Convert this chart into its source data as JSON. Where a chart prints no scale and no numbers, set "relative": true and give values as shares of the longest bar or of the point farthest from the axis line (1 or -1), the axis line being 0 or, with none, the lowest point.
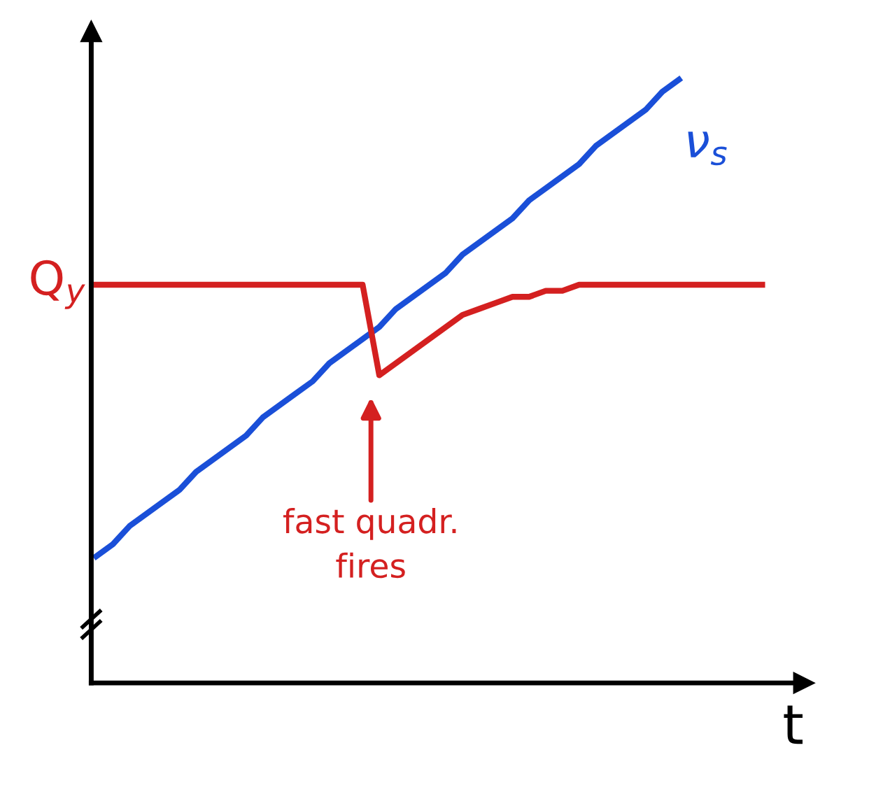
{
  "chart_data": {
    "type": "line",
    "relative": true,
    "xlabel": "t",
    "marker": "none",
    "line_style": "solid",
    "categories": [
      null,
      null,
      null,
      null,
      null,
      null,
      null,
      null,
      null,
      null,
      null,
      null,
      null,
      null,
      null,
      null,
      null,
      null,
      null,
      null,
      null,
      null,
      null,
      null,
      null,
      null,
      null,
      null,
      null,
      null,
      null,
      null,
      null,
      null,
      null,
      null,
      null,
      null,
      null,
      null,
      null
    ],
    "series": [
      {
        "name": "ν$_{s}$",
        "color": "#1a4fd8",
        "values": [
          0.21,
          0.23,
          0.26,
          0.28,
          0.3,
          0.32,
          0.35,
          0.37,
          0.39,
          0.41,
          0.44,
          0.46,
          0.48,
          0.5,
          0.53,
          0.55,
          0.57,
          0.59,
          0.62,
          0.64,
          0.66,
          0.68,
          0.71,
          0.73,
          0.75,
          0.77,
          0.8,
          0.82,
          0.84,
          0.86,
          0.89,
          0.91,
          0.93,
          0.95,
          0.98,
          1.0,
          null,
          null,
          null,
          null,
          null
        ]
      },
      {
        "name": "Q$_{y}$",
        "color": "#d42020",
        "values": [
          0.66,
          0.66,
          0.66,
          0.66,
          0.66,
          0.66,
          0.66,
          0.66,
          0.66,
          0.66,
          0.66,
          0.66,
          0.66,
          0.66,
          0.66,
          0.66,
          0.66,
          0.51,
          0.53,
          0.55,
          0.57,
          0.59,
          0.61,
          0.62,
          0.63,
          0.64,
          0.64,
          0.65,
          0.65,
          0.66,
          0.66,
          0.66,
          0.66,
          0.66,
          0.66,
          0.66,
          0.66,
          0.66,
          0.66,
          0.66,
          0.66
        ]
      }
    ],
    "annotations": [
      "fast quadr.\nfires"
    ]
  }
}
